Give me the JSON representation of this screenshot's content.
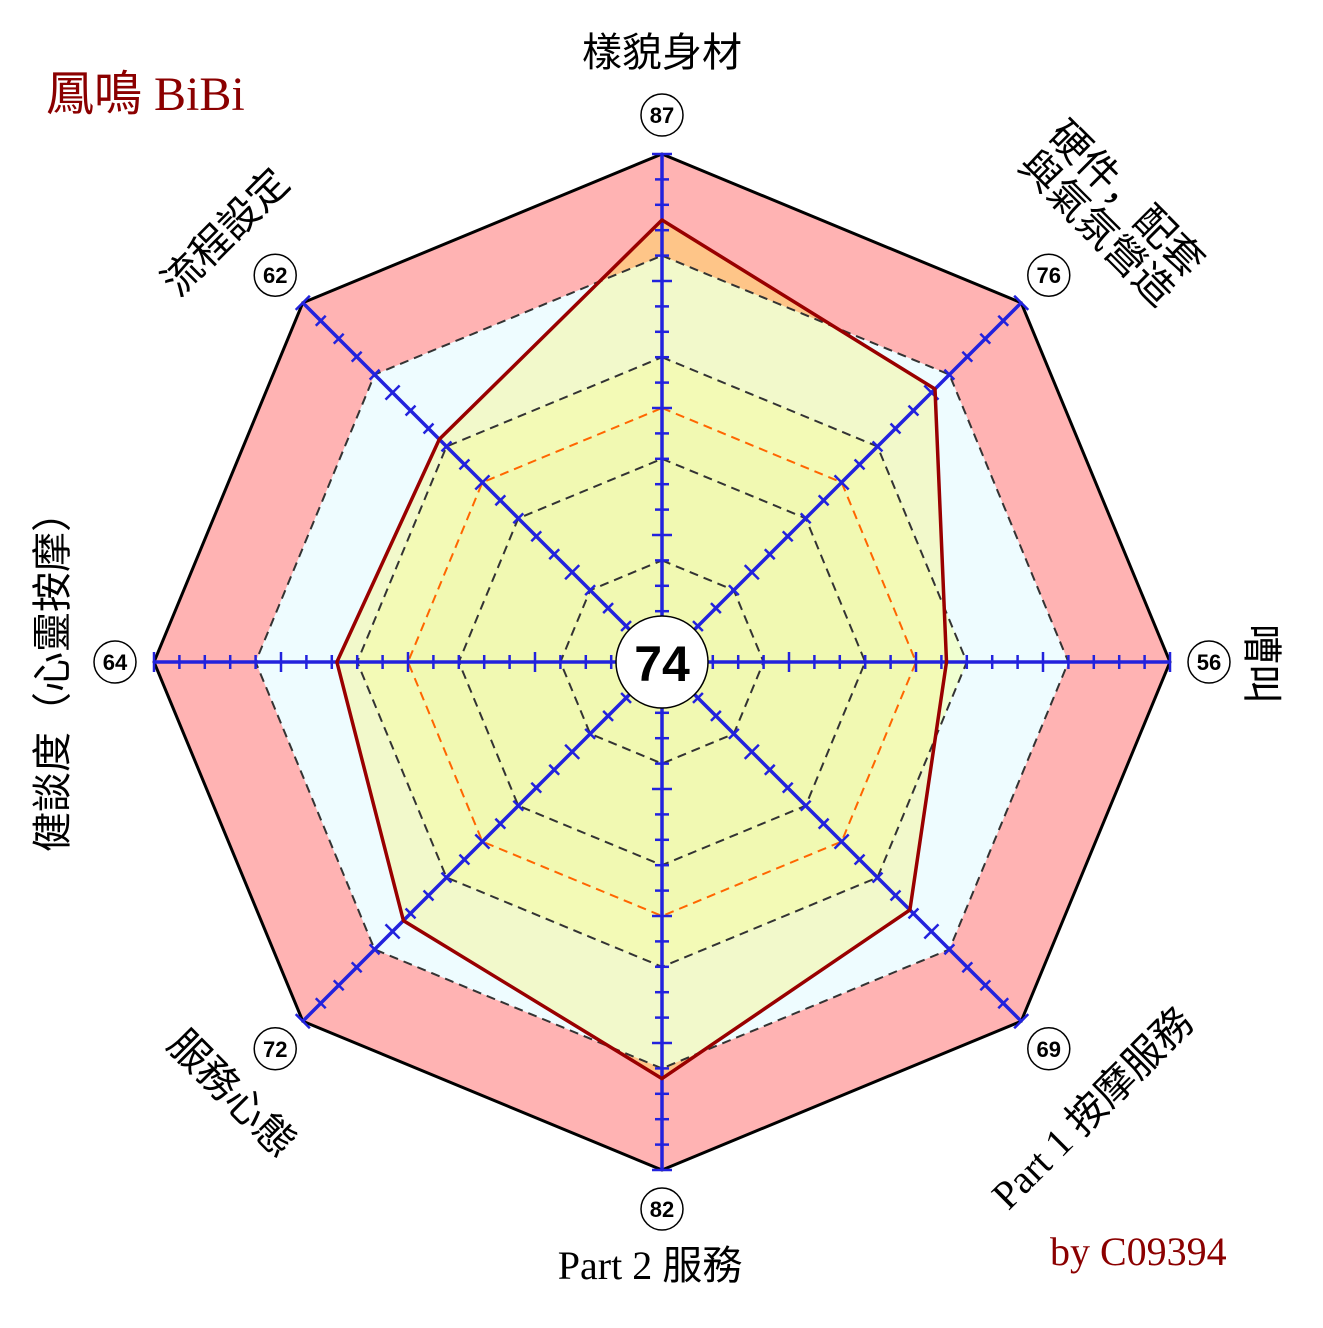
{
  "title": "鳳鳴 BiBi",
  "credit": "by C09394",
  "colors": {
    "outer_band": "#ffb3b3",
    "inner_fill": "#eefcff",
    "mid_fill": "#f0ffd0",
    "core_fill": "#ecfcc8",
    "series_fill": "#f5f5a0",
    "series_fill_high": "#ffc080",
    "series_line": "#990000",
    "axis": "#2222dd",
    "guide_dash": "#333333",
    "guide_orange": "#ff6600",
    "title_text": "#8b0000"
  },
  "chart_data": {
    "type": "radar",
    "overall_score": "74",
    "r_range": [
      0,
      100
    ],
    "reference_level": 80,
    "orange_guide_level": 50,
    "dashed_guide_levels": [
      20,
      40,
      60,
      80
    ],
    "categories": [
      "樣貌身材",
      "硬件，配套\n與氣氛營造",
      "嘈叫",
      "Part 1 按摩服務",
      "Part 2 服務",
      "服務心態",
      "健談度（心靈按摩）",
      "流程設定"
    ],
    "score_labels": [
      "87",
      "76",
      "56",
      "69",
      "82",
      "72",
      "64",
      "62"
    ],
    "series": [
      {
        "values": [
          87,
          76,
          56,
          69,
          82,
          72,
          64,
          62
        ]
      }
    ]
  }
}
